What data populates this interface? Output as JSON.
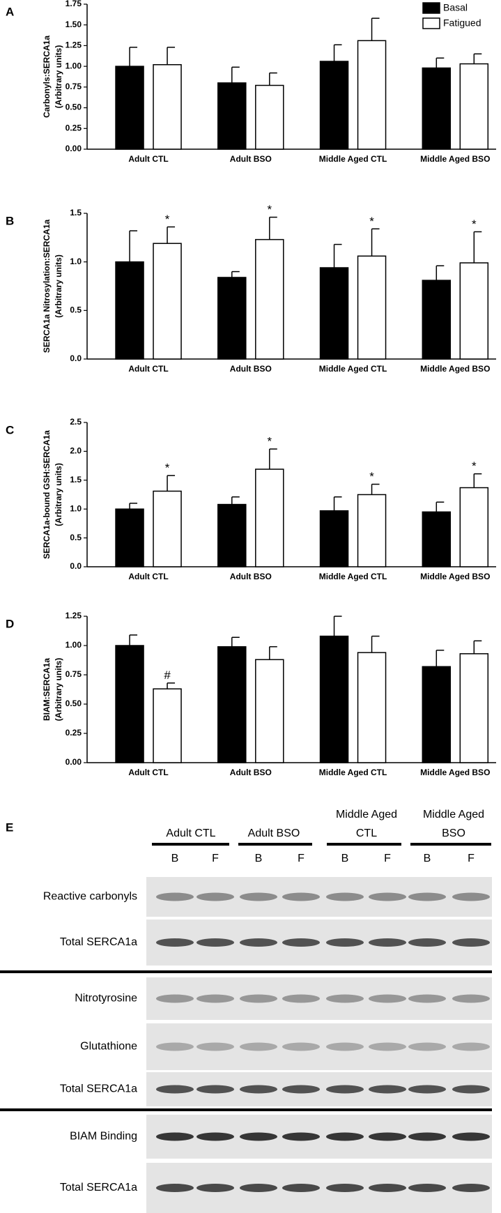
{
  "chart_data": [
    {
      "type": "bar",
      "panel": "A",
      "ylabel": [
        "Carbonyls:SERCA1a",
        "(Arbitrary units)"
      ],
      "categories": [
        "Adult CTL",
        "Adult BSO",
        "Middle Aged CTL",
        "Middle Aged BSO"
      ],
      "series": [
        {
          "name": "Basal",
          "color": "#000000",
          "values": [
            1.0,
            0.8,
            1.06,
            0.98
          ],
          "errors": [
            0.23,
            0.19,
            0.2,
            0.12
          ]
        },
        {
          "name": "Fatigued",
          "color": "#ffffff",
          "values": [
            1.02,
            0.77,
            1.31,
            1.03
          ],
          "errors": [
            0.21,
            0.15,
            0.27,
            0.12
          ]
        }
      ],
      "ylim": [
        0,
        1.75
      ],
      "yticks": [
        {
          "value": 0,
          "label": "0.00"
        },
        {
          "value": 0.25,
          "label": "0.25"
        },
        {
          "value": 0.5,
          "label": "0.50"
        },
        {
          "value": 0.75,
          "label": "0.75"
        },
        {
          "value": 1,
          "label": "1.00"
        },
        {
          "value": 1.25,
          "label": "1.25"
        },
        {
          "value": 1.5,
          "label": "1.50"
        },
        {
          "value": 1.75,
          "label": "1.75"
        }
      ],
      "legend": "upper right"
    },
    {
      "type": "bar",
      "panel": "B",
      "ylabel": [
        "SERCA1a Nitrosylation:SERCA1a",
        "(Arbitrary units)"
      ],
      "categories": [
        "Adult CTL",
        "Adult BSO",
        "Middle Aged CTL",
        "Middle Aged BSO"
      ],
      "series": [
        {
          "color": "#000000",
          "values": [
            1.0,
            0.84,
            0.94,
            0.81
          ],
          "errors": [
            0.32,
            0.06,
            0.24,
            0.15
          ]
        },
        {
          "color": "#ffffff",
          "values": [
            1.19,
            1.23,
            1.06,
            0.99
          ],
          "errors": [
            0.17,
            0.23,
            0.28,
            0.32
          ],
          "annotations": [
            "*",
            "*",
            "*",
            "*"
          ]
        }
      ],
      "ylim": [
        0,
        1.5
      ],
      "yticks": [
        {
          "value": 0,
          "label": "0.0"
        },
        {
          "value": 0.5,
          "label": "0.5"
        },
        {
          "value": 1,
          "label": "1.0"
        },
        {
          "value": 1.5,
          "label": "1.5"
        }
      ]
    },
    {
      "type": "bar",
      "panel": "C",
      "ylabel": [
        "SERCA1a-bound GSH:SERCA1a",
        "(Arbitrary units)"
      ],
      "categories": [
        "Adult CTL",
        "Adult BSO",
        "Middle Aged CTL",
        "Middle Aged BSO"
      ],
      "series": [
        {
          "color": "#000000",
          "values": [
            1.0,
            1.08,
            0.97,
            0.95
          ],
          "errors": [
            0.1,
            0.13,
            0.24,
            0.17
          ]
        },
        {
          "color": "#ffffff",
          "values": [
            1.31,
            1.69,
            1.25,
            1.37
          ],
          "errors": [
            0.27,
            0.35,
            0.18,
            0.24
          ],
          "annotations": [
            "*",
            "*",
            "*",
            "*"
          ]
        }
      ],
      "ylim": [
        0,
        2.5
      ],
      "yticks": [
        {
          "value": 0,
          "label": "0.0"
        },
        {
          "value": 0.5,
          "label": "0.5"
        },
        {
          "value": 1,
          "label": "1.0"
        },
        {
          "value": 1.5,
          "label": "1.5"
        },
        {
          "value": 2,
          "label": "2.0"
        },
        {
          "value": 2.5,
          "label": "2.5"
        }
      ]
    },
    {
      "type": "bar",
      "panel": "D",
      "ylabel": [
        "BIAM:SERCA1a",
        "(Arbitrary units)"
      ],
      "categories": [
        "Adult CTL",
        "Adult BSO",
        "Middle Aged CTL",
        "Middle Aged BSO"
      ],
      "series": [
        {
          "color": "#000000",
          "values": [
            1.0,
            0.99,
            1.08,
            0.82
          ],
          "errors": [
            0.09,
            0.08,
            0.17,
            0.14
          ]
        },
        {
          "color": "#ffffff",
          "values": [
            0.63,
            0.88,
            0.94,
            0.93
          ],
          "errors": [
            0.05,
            0.11,
            0.14,
            0.11
          ],
          "annotations": [
            "#",
            null,
            null,
            null
          ]
        }
      ],
      "ylim": [
        0,
        1.25
      ],
      "yticks": [
        {
          "value": 0,
          "label": "0.00"
        },
        {
          "value": 0.25,
          "label": "0.25"
        },
        {
          "value": 0.5,
          "label": "0.50"
        },
        {
          "value": 0.75,
          "label": "0.75"
        },
        {
          "value": 1,
          "label": "1.00"
        },
        {
          "value": 1.25,
          "label": "1.25"
        }
      ]
    }
  ],
  "blot": {
    "panel": "E",
    "groups": [
      [
        "Adult CTL"
      ],
      [
        "Adult BSO"
      ],
      [
        "Middle Aged",
        "CTL"
      ],
      [
        "Middle Aged",
        "BSO"
      ]
    ],
    "lanes": [
      "B",
      "F",
      "B",
      "F",
      "B",
      "F",
      "B",
      "F"
    ],
    "rows": [
      "Reactive carbonyls",
      "Total SERCA1a",
      "Nitrotyrosine",
      "Glutathione",
      "Total SERCA1a",
      "BIAM Binding",
      "Total SERCA1a"
    ]
  }
}
